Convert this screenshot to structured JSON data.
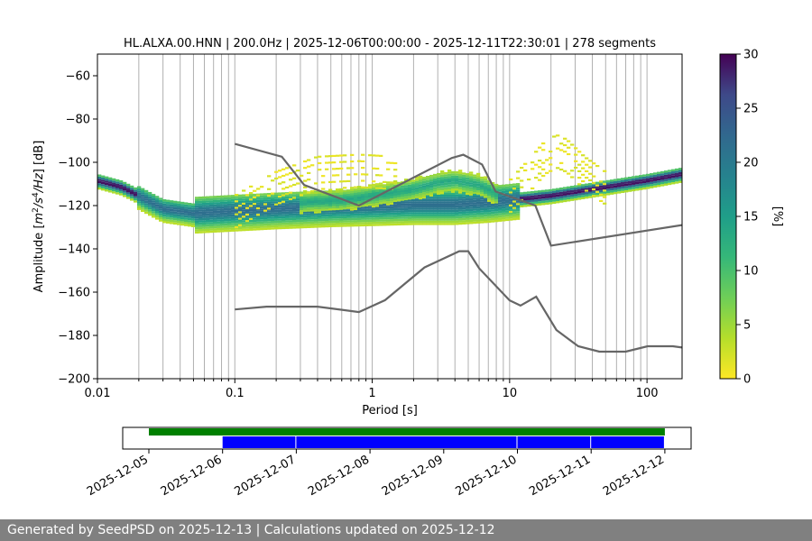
{
  "chart_data": [
    {
      "type": "heatmap",
      "title": "HL.ALXA.00.HNN | 200.0Hz | 2025-12-06T00:00:00 - 2025-12-11T22:30:01 | 278 segments",
      "xlabel": "Period [s]",
      "ylabel_parts": [
        "Amplitude [",
        "m",
        "2",
        "/s",
        "4",
        "/Hz",
        "] [dB]"
      ],
      "x_scale": "log",
      "xlim": [
        0.01,
        180
      ],
      "ylim": [
        -200,
        -50
      ],
      "x_ticks": [
        {
          "value": 0.01,
          "label": "0.01"
        },
        {
          "value": 0.1,
          "label": "0.1"
        },
        {
          "value": 1,
          "label": "1"
        },
        {
          "value": 10,
          "label": "10"
        },
        {
          "value": 100,
          "label": "100"
        }
      ],
      "y_ticks": [
        {
          "value": -60,
          "label": "−60"
        },
        {
          "value": -80,
          "label": "−80"
        },
        {
          "value": -100,
          "label": "−100"
        },
        {
          "value": -120,
          "label": "−120"
        },
        {
          "value": -140,
          "label": "−140"
        },
        {
          "value": -160,
          "label": "−160"
        },
        {
          "value": -180,
          "label": "−180"
        },
        {
          "value": -200,
          "label": "−200"
        }
      ],
      "grid": "x-major-minor",
      "colormap": "viridis_r",
      "colorbar": {
        "label": "[%]",
        "range": [
          0,
          30
        ],
        "ticks": [
          {
            "value": 0,
            "label": "0"
          },
          {
            "value": 5,
            "label": "5"
          },
          {
            "value": 10,
            "label": "10"
          },
          {
            "value": 15,
            "label": "15"
          },
          {
            "value": 20,
            "label": "20"
          },
          {
            "value": 25,
            "label": "25"
          },
          {
            "value": 30,
            "label": "30"
          }
        ]
      },
      "noise_models": {
        "color": "#666666",
        "nhnm": {
          "x": [
            0.1,
            0.22,
            0.32,
            0.8,
            3.8,
            4.6,
            6.3,
            7.9,
            15.4,
            20,
            180
          ],
          "y": [
            -91.5,
            -97.4,
            -110.5,
            -120,
            -98,
            -96.5,
            -101,
            -113.5,
            -120,
            -138.5,
            -129
          ]
        },
        "nlnm": {
          "x": [
            0.1,
            0.17,
            0.4,
            0.8,
            1.24,
            2.4,
            4.3,
            5,
            6,
            10,
            12,
            15.6,
            21.9,
            31.6,
            45,
            70,
            101,
            154,
            180
          ],
          "y": [
            -168,
            -166.7,
            -166.7,
            -169.2,
            -163.7,
            -148.6,
            -141.1,
            -141.1,
            -149,
            -163.8,
            -166.2,
            -162.1,
            -177.5,
            -185,
            -187.5,
            -187.5,
            -185,
            -185,
            -185.6
          ]
        }
      },
      "density_bands": {
        "main_mode": {
          "x": [
            0.01,
            0.015,
            0.02,
            0.03,
            0.05,
            0.1,
            0.2,
            0.5,
            1,
            2,
            4,
            7,
            10,
            20,
            50,
            100,
            180
          ],
          "y": [
            -108,
            -111,
            -115,
            -121,
            -123,
            -122,
            -121,
            -120,
            -119.5,
            -119,
            -119,
            -118,
            -117,
            -115,
            -111,
            -108,
            -105
          ]
        },
        "microseism_peak": {
          "x": [
            0.3,
            0.6,
            1,
            2,
            3,
            4,
            6,
            8
          ],
          "y": [
            -118,
            -117,
            -115,
            -112,
            -109,
            -108,
            -110,
            -114
          ]
        },
        "sparse_upper": [
          {
            "x": [
              0.1,
              0.2,
              0.4,
              0.8,
              1.5
            ],
            "y": [
              -115,
              -104,
              -97,
              -96,
              -97
            ]
          },
          {
            "x": [
              10,
              14,
              18,
              22,
              26,
              35,
              50
            ],
            "y": [
              -108,
              -98,
              -90,
              -87,
              -89,
              -97,
              -104
            ]
          }
        ]
      }
    },
    {
      "type": "timeline",
      "x_ticks": [
        "2025-12-05",
        "2025-12-06",
        "2025-12-07",
        "2025-12-08",
        "2025-12-09",
        "2025-12-10",
        "2025-12-11",
        "2025-12-12"
      ],
      "data_range": {
        "start": 0.0,
        "end": 7.0,
        "color": "#008000"
      },
      "psd_segments": [
        {
          "start": 1.0,
          "end": 2.0
        },
        {
          "start": 2.0,
          "end": 5.0
        },
        {
          "start": 5.0,
          "end": 6.0
        },
        {
          "start": 6.0,
          "end": 7.0
        }
      ],
      "segment_color": "#0000ff"
    }
  ],
  "footer": "Generated by SeedPSD on 2025-12-13 | Calculations updated on 2025-12-12"
}
